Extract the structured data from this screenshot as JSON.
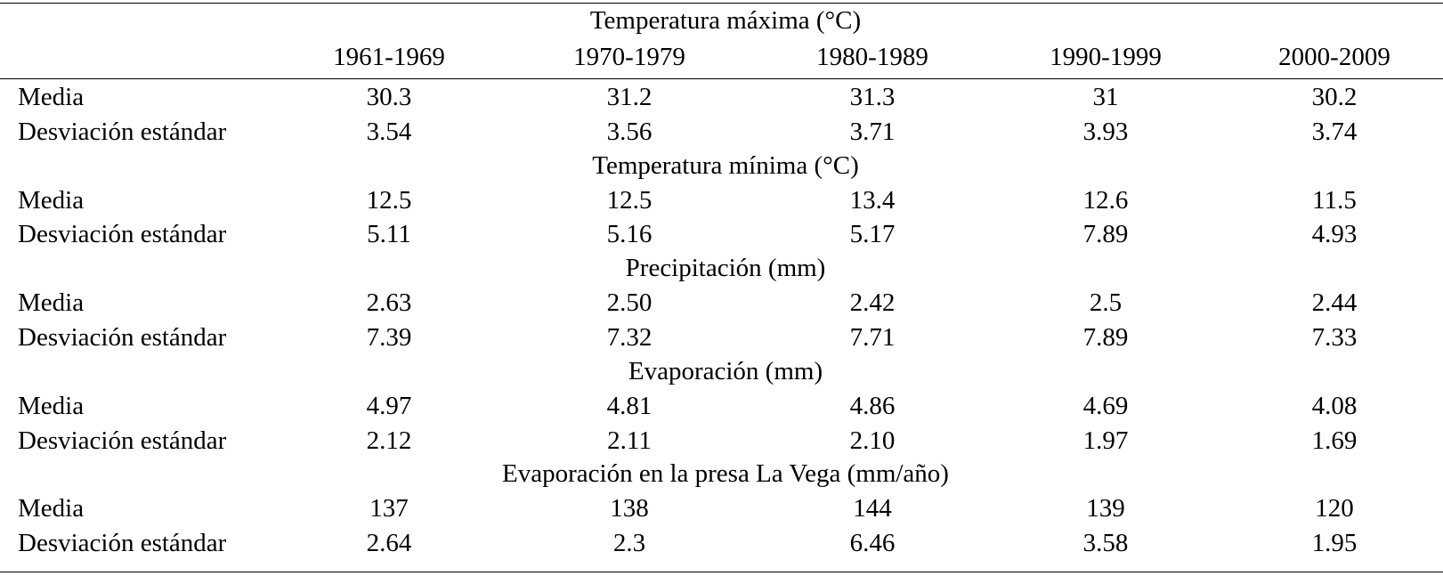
{
  "table": {
    "columns": [
      "1961-1969",
      "1970-1979",
      "1980-1989",
      "1990-1999",
      "2000-2009"
    ],
    "sections": [
      {
        "title": "Temperatura máxima (°C)",
        "rows": [
          {
            "label": "Media",
            "values": [
              "30.3",
              "31.2",
              "31.3",
              "31",
              "30.2"
            ]
          },
          {
            "label": "Desviación estándar",
            "values": [
              "3.54",
              "3.56",
              "3.71",
              "3.93",
              "3.74"
            ]
          }
        ]
      },
      {
        "title": "Temperatura mínima (°C)",
        "rows": [
          {
            "label": "Media",
            "values": [
              "12.5",
              "12.5",
              "13.4",
              "12.6",
              "11.5"
            ]
          },
          {
            "label": "Desviación estándar",
            "values": [
              "5.11",
              "5.16",
              "5.17",
              "7.89",
              "4.93"
            ]
          }
        ]
      },
      {
        "title": "Precipitación (mm)",
        "rows": [
          {
            "label": "Media",
            "values": [
              "2.63",
              "2.50",
              "2.42",
              "2.5",
              "2.44"
            ]
          },
          {
            "label": "Desviación estándar",
            "values": [
              "7.39",
              "7.32",
              "7.71",
              "7.89",
              "7.33"
            ]
          }
        ]
      },
      {
        "title": "Evaporación (mm)",
        "rows": [
          {
            "label": "Media",
            "values": [
              "4.97",
              "4.81",
              "4.86",
              "4.69",
              "4.08"
            ]
          },
          {
            "label": "Desviación estándar",
            "values": [
              "2.12",
              "2.11",
              "2.10",
              "1.97",
              "1.69"
            ]
          }
        ]
      },
      {
        "title": "Evaporación en la presa La Vega (mm/año)",
        "rows": [
          {
            "label": "Media",
            "values": [
              "137",
              "138",
              "144",
              "139",
              "120"
            ]
          },
          {
            "label": "Desviación estándar",
            "values": [
              "2.64",
              "2.3",
              "6.46",
              "3.58",
              "1.95"
            ]
          }
        ]
      }
    ]
  }
}
